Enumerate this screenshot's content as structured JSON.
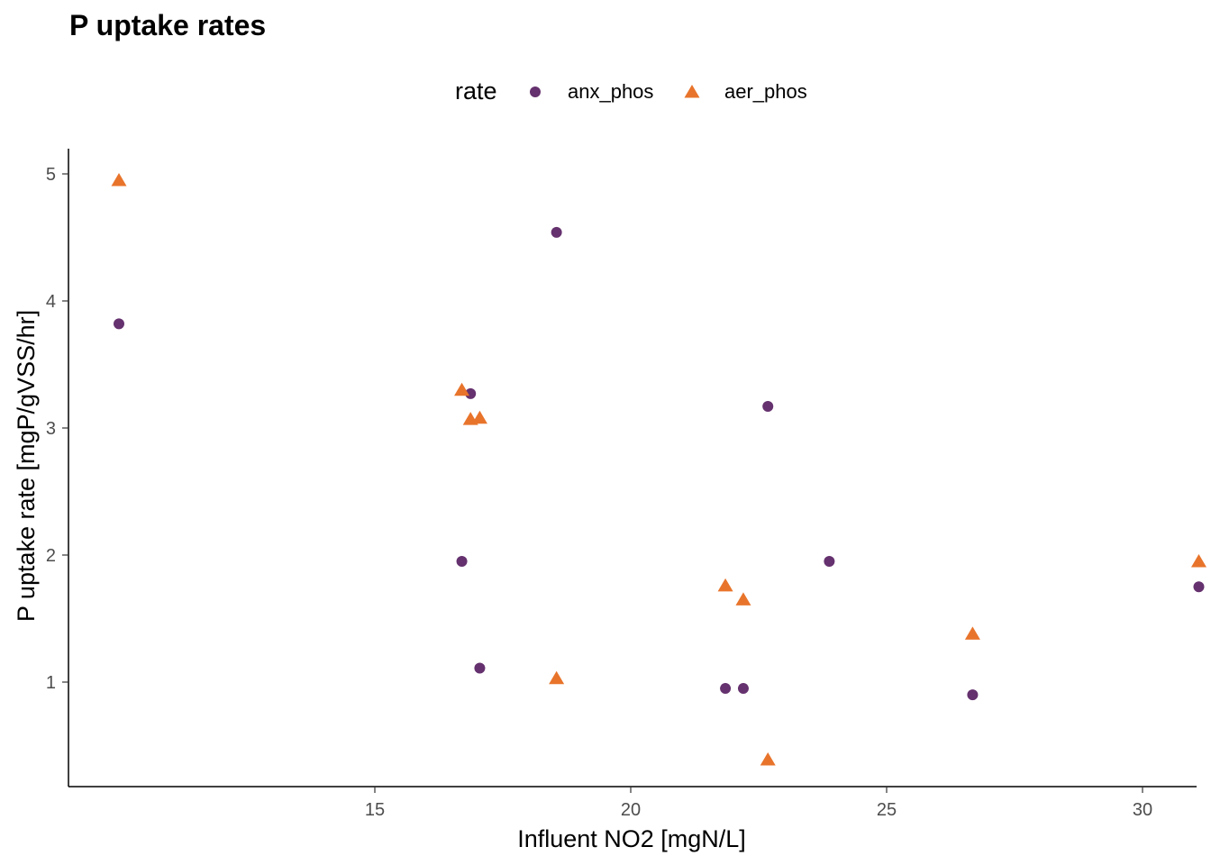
{
  "chart_data": {
    "type": "scatter",
    "title": "P uptake rates",
    "xlabel": "Influent NO2 [mgN/L]",
    "ylabel": "P uptake rate [mgP/gVSS/hr]",
    "xlim": [
      10.0,
      32.1
    ],
    "ylim": [
      0.15,
      5.2
    ],
    "x_ticks": [
      15,
      20,
      25,
      30
    ],
    "y_ticks": [
      1,
      2,
      3,
      4,
      5
    ],
    "grid": false,
    "legend": {
      "title": "rate",
      "position": "top"
    },
    "series": [
      {
        "name": "anx_phos",
        "marker": "circle",
        "color": "#65316e",
        "points": [
          [
            10.0,
            3.82
          ],
          [
            16.7,
            1.95
          ],
          [
            16.87,
            3.27
          ],
          [
            17.05,
            1.11
          ],
          [
            18.55,
            4.54
          ],
          [
            21.85,
            0.95
          ],
          [
            22.2,
            0.95
          ],
          [
            22.68,
            3.17
          ],
          [
            23.88,
            1.95
          ],
          [
            26.68,
            0.9
          ],
          [
            31.1,
            1.75
          ]
        ]
      },
      {
        "name": "aer_phos",
        "marker": "triangle",
        "color": "#e8742b",
        "points": [
          [
            10.0,
            4.95
          ],
          [
            16.7,
            3.3
          ],
          [
            16.87,
            3.07
          ],
          [
            17.05,
            3.08
          ],
          [
            18.55,
            1.03
          ],
          [
            21.85,
            1.76
          ],
          [
            22.2,
            1.65
          ],
          [
            22.68,
            0.39
          ],
          [
            26.68,
            1.38
          ],
          [
            31.1,
            1.95
          ]
        ]
      }
    ]
  }
}
